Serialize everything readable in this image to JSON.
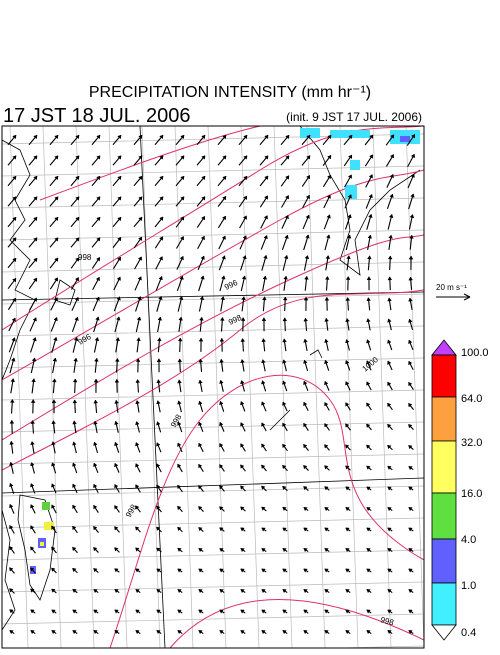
{
  "header": {
    "title": "PRECIPITATION INTENSITY (mm hr⁻¹)",
    "valid_time": "17 JST 18 JUL. 2006",
    "init_time": "(init. 9 JST 17 JUL. 2006)"
  },
  "wind_reference": "20 m s⁻¹",
  "contour_labels": [
    "998",
    "996",
    "998",
    "996",
    "1000",
    "998",
    "998",
    "998"
  ],
  "colorbar": {
    "labels": [
      "100.0",
      "64.0",
      "32.0",
      "16.0",
      "4.0",
      "1.0",
      "0.4"
    ]
  }
}
